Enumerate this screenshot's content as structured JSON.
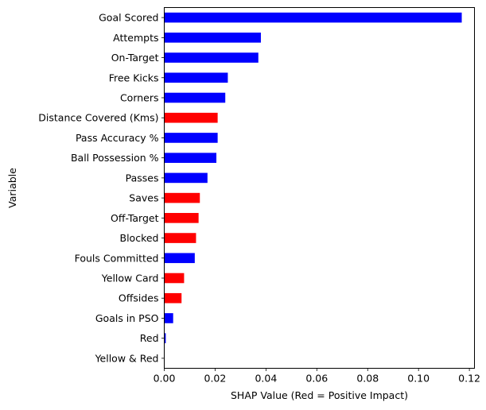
{
  "chart_data": {
    "type": "bar",
    "orientation": "horizontal",
    "xlabel": "SHAP Value (Red = Positive Impact)",
    "ylabel": "Variable",
    "xlim": [
      0.0,
      0.122
    ],
    "xticks": [
      "0.00",
      "0.02",
      "0.04",
      "0.06",
      "0.08",
      "0.10",
      "0.12"
    ],
    "xtick_values": [
      0.0,
      0.02,
      0.04,
      0.06,
      0.08,
      0.1,
      0.12
    ],
    "colors": {
      "positive": "#ff0000",
      "negative": "#0000ff"
    },
    "categories": [
      "Goal Scored",
      "Attempts",
      "On-Target",
      "Free Kicks",
      "Corners",
      "Distance Covered (Kms)",
      "Pass Accuracy %",
      "Ball Possession %",
      "Passes",
      "Saves",
      "Off-Target",
      "Blocked",
      "Fouls Committed",
      "Yellow Card",
      "Offsides",
      "Goals in PSO",
      "Red",
      "Yellow & Red"
    ],
    "values": [
      0.117,
      0.038,
      0.037,
      0.025,
      0.024,
      0.021,
      0.021,
      0.0205,
      0.017,
      0.014,
      0.0135,
      0.0125,
      0.012,
      0.0078,
      0.0068,
      0.0035,
      0.0006,
      0.0001
    ],
    "bar_colors": [
      "negative",
      "negative",
      "negative",
      "negative",
      "negative",
      "positive",
      "negative",
      "negative",
      "negative",
      "positive",
      "positive",
      "positive",
      "negative",
      "positive",
      "positive",
      "negative",
      "negative",
      "negative"
    ],
    "grid": false,
    "legend": "none"
  }
}
